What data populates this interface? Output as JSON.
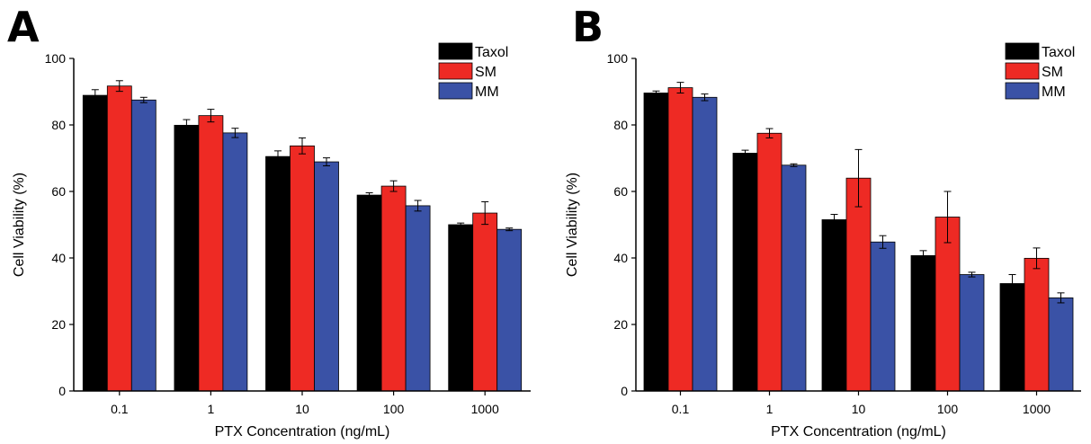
{
  "colors": {
    "Taxol": "#000000",
    "SM": "#ee2a24",
    "MM": "#3a52a6"
  },
  "chart_data": [
    {
      "panel_label": "A",
      "type": "bar",
      "categories": [
        "0.1",
        "1",
        "10",
        "100",
        "1000"
      ],
      "series": [
        {
          "name": "Taxol",
          "values": [
            88.9,
            79.9,
            70.5,
            58.9,
            50.0
          ],
          "errors": [
            1.7,
            1.7,
            1.7,
            0.7,
            0.5
          ]
        },
        {
          "name": "SM",
          "values": [
            91.7,
            82.8,
            73.7,
            61.6,
            53.5
          ],
          "errors": [
            1.6,
            1.9,
            2.4,
            1.6,
            3.4
          ]
        },
        {
          "name": "MM",
          "values": [
            87.5,
            77.6,
            68.9,
            55.7,
            48.6
          ],
          "errors": [
            0.8,
            1.4,
            1.2,
            1.6,
            0.4
          ]
        }
      ],
      "xlabel": "PTX Concentration (ng/mL)",
      "ylabel": "Cell Viability (%)",
      "ylim": [
        0,
        100
      ],
      "yticks": [
        "0",
        "20",
        "40",
        "60",
        "80",
        "100"
      ],
      "legend": "top-right",
      "grid": false
    },
    {
      "panel_label": "B",
      "type": "bar",
      "categories": [
        "0.1",
        "1",
        "10",
        "100",
        "1000"
      ],
      "series": [
        {
          "name": "Taxol",
          "values": [
            89.6,
            71.5,
            51.5,
            40.7,
            32.3
          ],
          "errors": [
            0.6,
            0.9,
            1.6,
            1.5,
            2.7
          ]
        },
        {
          "name": "SM",
          "values": [
            91.2,
            77.5,
            64.0,
            52.3,
            39.9
          ],
          "errors": [
            1.6,
            1.4,
            8.6,
            7.7,
            3.1
          ]
        },
        {
          "name": "MM",
          "values": [
            88.3,
            67.9,
            44.8,
            35.0,
            28.0
          ],
          "errors": [
            1.0,
            0.4,
            1.9,
            0.7,
            1.5
          ]
        }
      ],
      "xlabel": "PTX Concentration (ng/mL)",
      "ylabel": "Cell Viability (%)",
      "ylim": [
        0,
        100
      ],
      "yticks": [
        "0",
        "20",
        "40",
        "60",
        "80",
        "100"
      ],
      "legend": "top-right",
      "grid": false
    }
  ]
}
